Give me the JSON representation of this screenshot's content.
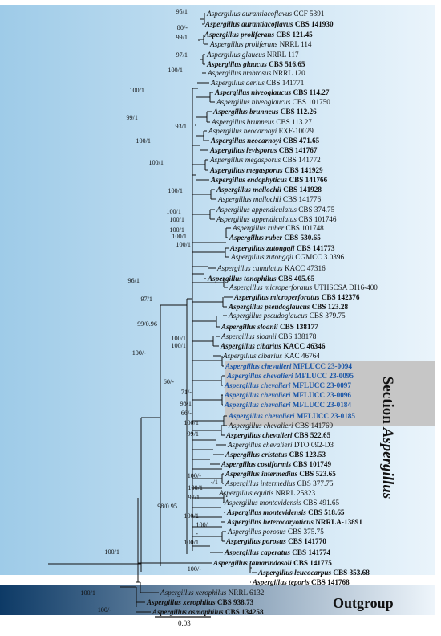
{
  "section_label": {
    "prefix": "Section ",
    "name": "Aspergillus"
  },
  "outgroup_label": "Outgroup",
  "scale_bar_label": "0.03",
  "colors": {
    "section_band_dark": "#9ecbe8",
    "section_band_light": "#eaf4fb",
    "highlight_band": "#c6c6c6",
    "outgroup_band_dark": "#0d3a66",
    "outgroup_band_light": "#eef5fb",
    "new_strain_text": "#1a56a8",
    "tree_line": "#111111"
  },
  "taxa": [
    {
      "genus": "Aspergillus",
      "species": "aurantiacoflavus",
      "strain": "CCF 5391",
      "bold": false,
      "hl": false
    },
    {
      "genus": "Aspergillus",
      "species": "aurantiacoflavus",
      "strain": "CBS 141930",
      "bold": true,
      "hl": false
    },
    {
      "genus": "Aspergillus",
      "species": "proliferans",
      "strain": "CBS 121.45",
      "bold": true,
      "hl": false
    },
    {
      "genus": "Aspergillus",
      "species": "proliferans",
      "strain": "NRRL  114",
      "bold": false,
      "hl": false
    },
    {
      "genus": "Aspergillus",
      "species": "glaucus",
      "strain": "NRRL  117",
      "bold": false,
      "hl": false
    },
    {
      "genus": "Aspergillus",
      "species": "glaucus",
      "strain": "CBS 516.65",
      "bold": true,
      "hl": false
    },
    {
      "genus": "Aspergillus",
      "species": "umbrosus",
      "strain": "NRRL  120",
      "bold": false,
      "hl": false
    },
    {
      "genus": "Aspergillus",
      "species": "aerius",
      "strain": "CBS 141771",
      "bold": false,
      "hl": false
    },
    {
      "genus": "Aspergillus",
      "species": "niveoglaucus",
      "strain": "CBS 114.27",
      "bold": true,
      "hl": false
    },
    {
      "genus": "Aspergillus",
      "species": "niveoglaucus",
      "strain": "CBS 101750",
      "bold": false,
      "hl": false
    },
    {
      "genus": "Aspergillus",
      "species": "brunneus",
      "strain": "CBS 112.26",
      "bold": true,
      "hl": false
    },
    {
      "genus": "Aspergillus",
      "species": "brunneus",
      "strain": "CBS 113.27",
      "bold": false,
      "hl": false
    },
    {
      "genus": "Aspergillus",
      "species": "neocarnoyi",
      "strain": "EXF-10029",
      "bold": false,
      "hl": false
    },
    {
      "genus": "Aspergillus",
      "species": "neocarnoyi",
      "strain": "CBS 471.65",
      "bold": true,
      "hl": false
    },
    {
      "genus": "Aspergillus",
      "species": "levisporus",
      "strain": "CBS 141767",
      "bold": true,
      "hl": false
    },
    {
      "genus": "Aspergillus",
      "species": "megasporus",
      "strain": "CBS 141772",
      "bold": false,
      "hl": false
    },
    {
      "genus": "Aspergillus",
      "species": "megasporus",
      "strain": "CBS 141929",
      "bold": true,
      "hl": false
    },
    {
      "genus": "Aspergillus",
      "species": "endophyticus",
      "strain": "CBS 141766",
      "bold": true,
      "hl": false
    },
    {
      "genus": "Aspergillus",
      "species": "mallochii",
      "strain": "CBS 141928",
      "bold": true,
      "hl": false
    },
    {
      "genus": "Aspergillus",
      "species": "mallochii",
      "strain": "CBS 141776",
      "bold": false,
      "hl": false
    },
    {
      "genus": "Aspergillus",
      "species": "appendiculatus",
      "strain": "CBS 374.75",
      "bold": false,
      "hl": false
    },
    {
      "genus": "Aspergillus",
      "species": "appendiculatus",
      "strain": "CBS 101746",
      "bold": false,
      "hl": false
    },
    {
      "genus": "Aspergillus",
      "species": "ruber",
      "strain": "CBS  101748",
      "bold": false,
      "hl": false
    },
    {
      "genus": "Aspergillus",
      "species": "ruber",
      "strain": "CBS 530.65",
      "bold": true,
      "hl": false
    },
    {
      "genus": "Aspergillus",
      "species": "zutongqii",
      "strain": "CBS 141773",
      "bold": true,
      "hl": false
    },
    {
      "genus": "Aspergillus",
      "species": "zutongqii",
      "strain": "CGMCC  3.03961",
      "bold": false,
      "hl": false
    },
    {
      "genus": "Aspergillus",
      "species": "cumulatus",
      "strain": "KACC  47316",
      "bold": false,
      "hl": false
    },
    {
      "genus": "Aspergillus",
      "species": "tonophilus",
      "strain": "CBS 405.65",
      "bold": true,
      "hl": false
    },
    {
      "genus": "Aspergillus",
      "species": "microperforatus",
      "strain": "UTHSCSA  DI16-400",
      "bold": false,
      "hl": false
    },
    {
      "genus": "Aspergillus",
      "species": "microperforatus",
      "strain": "CBS 142376",
      "bold": true,
      "hl": false
    },
    {
      "genus": "Aspergillus",
      "species": "pseudoglaucus",
      "strain": "CBS 123.28",
      "bold": true,
      "hl": false
    },
    {
      "genus": "Aspergillus",
      "species": "pseudoglaucus",
      "strain": "CBS 379.75",
      "bold": false,
      "hl": false
    },
    {
      "genus": "Aspergillus",
      "species": "sloanii",
      "strain": "CBS 138177",
      "bold": true,
      "hl": false
    },
    {
      "genus": "Aspergillus",
      "species": "sloanii",
      "strain": "CBS 138178",
      "bold": false,
      "hl": false
    },
    {
      "genus": "Aspergillus",
      "species": "cibarius",
      "strain": "KACC  46346",
      "bold": true,
      "hl": false
    },
    {
      "genus": "Aspergillus",
      "species": "cibarius",
      "strain": "KAC 46764",
      "bold": false,
      "hl": false
    },
    {
      "genus": "Aspergillus",
      "species": "chevalieri",
      "strain": "MFLUCC  23-0094",
      "bold": true,
      "hl": true
    },
    {
      "genus": "Aspergillus",
      "species": "chevalieri",
      "strain": "MFLUCC  23-0095",
      "bold": true,
      "hl": true
    },
    {
      "genus": "Aspergillus",
      "species": "chevalieri",
      "strain": "MFLUCC  23-0097",
      "bold": true,
      "hl": true
    },
    {
      "genus": "Aspergillus",
      "species": "chevalieri",
      "strain": "MFLUCC  23-0096",
      "bold": true,
      "hl": true
    },
    {
      "genus": "Aspergillus",
      "species": "chevalieri",
      "strain": "MFLUCC  23-0184",
      "bold": true,
      "hl": true
    },
    {
      "genus": "Aspergillus",
      "species": "chevalieri",
      "strain": "MFLUCC  23-0185",
      "bold": true,
      "hl": true
    },
    {
      "genus": "Aspergillus",
      "species": "chevalieri",
      "strain": "CBS 141769",
      "bold": false,
      "hl": false
    },
    {
      "genus": "Aspergillus",
      "species": "chevalieri",
      "strain": "CBS 522.65",
      "bold": true,
      "hl": false
    },
    {
      "genus": "Aspergillus",
      "species": "chevalieri",
      "strain": "DTO  092-D3",
      "bold": false,
      "hl": false
    },
    {
      "genus": "Aspergillus",
      "species": "cristatus",
      "strain": "CBS 123.53",
      "bold": true,
      "hl": false
    },
    {
      "genus": "Aspergillus",
      "species": "costiformis",
      "strain": "CBS 101749",
      "bold": true,
      "hl": false
    },
    {
      "genus": "Aspergillus",
      "species": "intermedius",
      "strain": "CBS 523.65",
      "bold": true,
      "hl": false
    },
    {
      "genus": "Aspergillus",
      "species": "intermedius",
      "strain": "CBS  377.75",
      "bold": false,
      "hl": false
    },
    {
      "genus": "Aspergillus",
      "species": "equitis",
      "strain": "NRRL  25823",
      "bold": false,
      "hl": false
    },
    {
      "genus": "Aspergillus",
      "species": "montevidensis",
      "strain": "CBS  491.65",
      "bold": false,
      "hl": false
    },
    {
      "genus": "Aspergillus",
      "species": "montevidensis",
      "strain": "CBS 518.65",
      "bold": true,
      "hl": false
    },
    {
      "genus": "Aspergillus",
      "species": "heterocaryoticus",
      "strain": "NRRLA-13891",
      "bold": true,
      "hl": false
    },
    {
      "genus": "Aspergillus",
      "species": "porosus",
      "strain": "CBS  375.75",
      "bold": false,
      "hl": false
    },
    {
      "genus": "Aspergillus",
      "species": "porosus",
      "strain": "CBS 141770",
      "bold": true,
      "hl": false
    },
    {
      "genus": "Aspergillus",
      "species": "caperatus",
      "strain": "CBS 141774",
      "bold": true,
      "hl": false
    },
    {
      "genus": "Aspergillus",
      "species": "tamarindosoli",
      "strain": "CBS 141775",
      "bold": true,
      "hl": false
    },
    {
      "genus": "Aspergillus",
      "species": "leucocarpus",
      "strain": "CBS 353.68",
      "bold": true,
      "hl": false
    },
    {
      "genus": "Aspergillus",
      "species": "teporis",
      "strain": "CBS 141768",
      "bold": true,
      "hl": false
    },
    {
      "genus": "Aspergillus",
      "species": "xerophilus",
      "strain": "NRRL  6132",
      "bold": false,
      "hl": false
    },
    {
      "genus": "Aspergillus",
      "species": "xerophilus",
      "strain": "CBS 938.73",
      "bold": true,
      "hl": false
    },
    {
      "genus": "Aspergillus",
      "species": "osmophilus",
      "strain": "CBS 134258",
      "bold": true,
      "hl": false
    }
  ],
  "supports": [
    "95/1",
    "80/-",
    "99/1",
    "97/1",
    "100/1",
    "100/1",
    "99/1",
    "93/1",
    "100/1",
    "100/1",
    "100/1",
    "100/1",
    "100/1",
    "100/1",
    "100/1",
    "100/1",
    "96/1",
    "97/1",
    "99/0.96",
    "100/-",
    "100/1",
    "100/1",
    "60/-",
    "71/-",
    "98/1",
    "66/-",
    "100/1",
    "99/1",
    "100/-",
    "-/1",
    "100/1",
    "97/1",
    "98/0.95",
    "100/1",
    "100/",
    "-",
    "100/1",
    "100/1",
    "100/-",
    "100/1",
    "100/-"
  ]
}
